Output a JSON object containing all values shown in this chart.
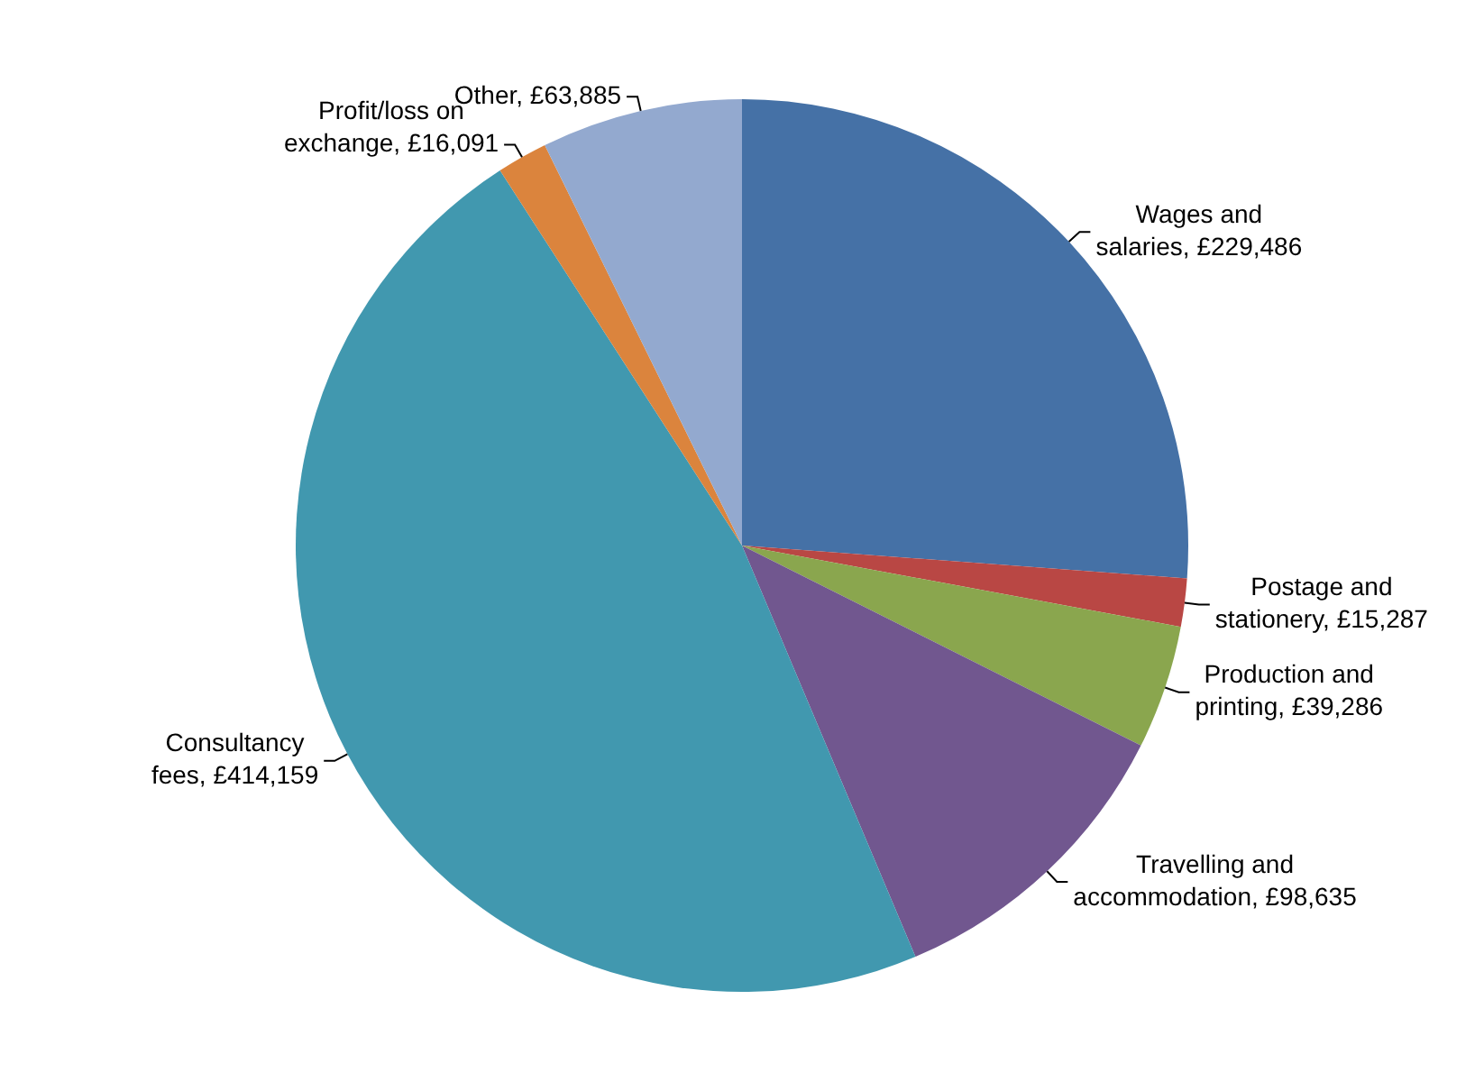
{
  "chart_data": {
    "type": "pie",
    "categories": [
      "Wages and salaries",
      "Postage and stationery",
      "Production and printing",
      "Travelling and accommodation",
      "Consultancy fees",
      "Profit/loss on exchange",
      "Other"
    ],
    "values": [
      229486,
      15287,
      39286,
      98635,
      414159,
      16091,
      63885
    ],
    "value_labels": [
      "£229,486",
      "£15,287",
      "£39,286",
      "£98,635",
      "£414,159",
      "£16,091",
      "£63,885"
    ],
    "colors": [
      "#4571a6",
      "#b94744",
      "#8aa64e",
      "#71578f",
      "#4198af",
      "#db843d",
      "#93a9cf"
    ],
    "legend": false
  }
}
